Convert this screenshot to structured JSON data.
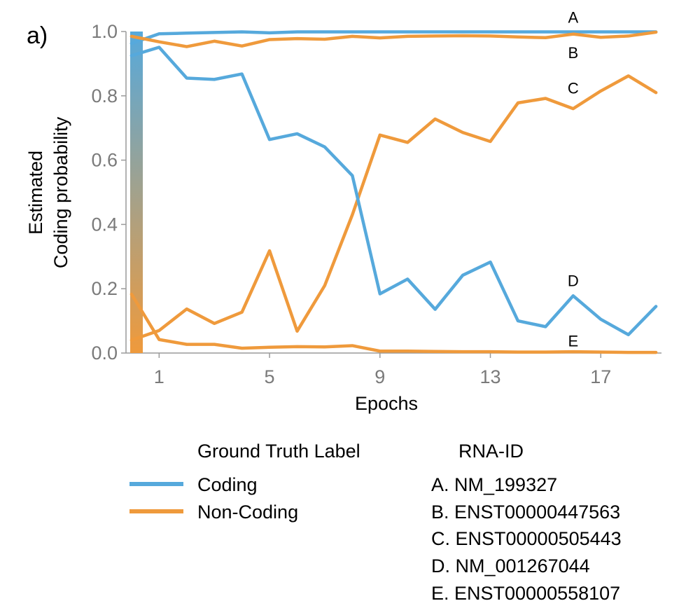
{
  "panel_label": "a)",
  "chart_data": {
    "type": "line",
    "xlabel": "Epochs",
    "ylabel_lines": [
      "Estimated",
      "Coding probability"
    ],
    "xlim": [
      -0.2,
      19.2
    ],
    "ylim": [
      0,
      1
    ],
    "x_ticks": [
      1,
      5,
      9,
      13,
      17
    ],
    "y_ticks": [
      0.0,
      0.2,
      0.4,
      0.6,
      0.8,
      1.0
    ],
    "y_tick_labels": [
      "0.0",
      "0.2",
      "0.4",
      "0.6",
      "0.8",
      "1.0"
    ],
    "grid": false,
    "colorbar_gradient": [
      "#56a9dc",
      "#ef9a3c"
    ],
    "colors": {
      "Coding": "#56a9dc",
      "Non-Coding": "#ef9a3c"
    },
    "x": [
      0,
      1,
      2,
      3,
      4,
      5,
      6,
      7,
      8,
      9,
      10,
      11,
      12,
      13,
      14,
      15,
      16,
      17,
      18,
      19
    ],
    "series": [
      {
        "id": "A",
        "label_text": "A",
        "label_y": 1.045,
        "ground_truth": "Coding",
        "values": [
          0.963,
          0.993,
          0.995,
          0.997,
          0.999,
          0.996,
          0.999,
          0.999,
          0.999,
          0.999,
          0.999,
          0.999,
          0.999,
          0.999,
          0.999,
          0.999,
          0.999,
          0.999,
          0.999,
          0.999
        ]
      },
      {
        "id": "B",
        "label_text": "B",
        "label_y": 0.935,
        "ground_truth": "Non-Coding",
        "values": [
          0.985,
          0.968,
          0.953,
          0.97,
          0.955,
          0.975,
          0.978,
          0.976,
          0.985,
          0.98,
          0.985,
          0.986,
          0.987,
          0.986,
          0.983,
          0.981,
          0.992,
          0.982,
          0.986,
          0.998
        ]
      },
      {
        "id": "C",
        "label_text": "C",
        "label_y": 0.825,
        "ground_truth": "Non-Coding",
        "values": [
          0.04,
          0.07,
          0.137,
          0.092,
          0.127,
          0.318,
          0.068,
          0.21,
          0.43,
          0.678,
          0.655,
          0.728,
          0.686,
          0.658,
          0.778,
          0.792,
          0.76,
          0.815,
          0.862,
          0.81
        ]
      },
      {
        "id": "D",
        "label_text": "D",
        "label_y": 0.225,
        "ground_truth": "Coding",
        "values": [
          0.925,
          0.951,
          0.855,
          0.851,
          0.868,
          0.664,
          0.682,
          0.641,
          0.552,
          0.184,
          0.23,
          0.136,
          0.242,
          0.283,
          0.1,
          0.082,
          0.178,
          0.105,
          0.057,
          0.145
        ]
      },
      {
        "id": "E",
        "label_text": "E",
        "label_y": 0.038,
        "ground_truth": "Non-Coding",
        "values": [
          0.183,
          0.042,
          0.027,
          0.027,
          0.015,
          0.018,
          0.02,
          0.019,
          0.023,
          0.006,
          0.006,
          0.005,
          0.004,
          0.004,
          0.003,
          0.003,
          0.004,
          0.003,
          0.002,
          0.002
        ]
      }
    ]
  },
  "legend": {
    "ground_truth_title": "Ground Truth Label",
    "ground_truth_items": [
      {
        "label": "Coding",
        "color": "#56a9dc"
      },
      {
        "label": "Non-Coding",
        "color": "#ef9a3c"
      }
    ],
    "rna_title": "RNA-ID",
    "rna_items": [
      "A. NM_199327",
      "B. ENST00000447563",
      "C. ENST00000505443",
      "D. NM_001267044",
      "E. ENST00000558107"
    ]
  }
}
